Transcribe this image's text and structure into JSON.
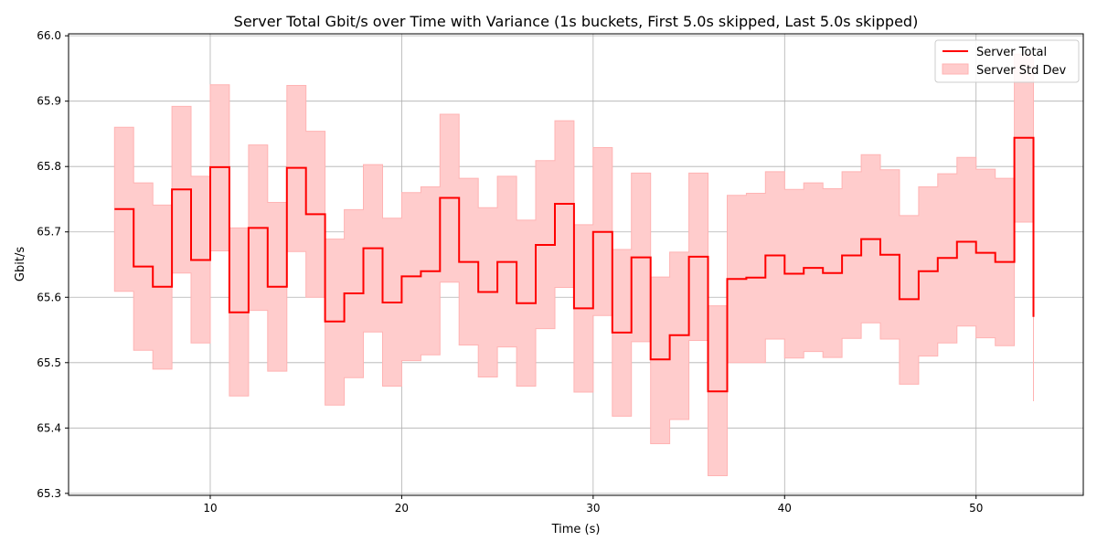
{
  "chart_data": {
    "type": "line",
    "title": "Server Total Gbit/s over Time with Variance (1s buckets, First 5.0s skipped, Last 5.0s skipped)",
    "xlabel": "Time (s)",
    "ylabel": "Gbit/s",
    "xlim": [
      2.6,
      55.6
    ],
    "ylim": [
      65.297,
      66.003
    ],
    "xticks": [
      10,
      20,
      30,
      40,
      50
    ],
    "yticks": [
      65.3,
      65.4,
      65.5,
      65.6,
      65.7,
      65.8,
      65.9,
      66.0
    ],
    "grid": true,
    "legend_position": "top-right",
    "colors": {
      "line": "#ff0000",
      "band_fill": "#ffcccc",
      "band_edge": "#ffb3b3",
      "grid": "#b0b0b0"
    },
    "x": [
      5,
      6,
      7,
      8,
      9,
      10,
      11,
      12,
      13,
      14,
      15,
      16,
      17,
      18,
      19,
      20,
      21,
      22,
      23,
      24,
      25,
      26,
      27,
      28,
      29,
      30,
      31,
      32,
      33,
      34,
      35,
      36,
      37,
      38,
      39,
      40,
      41,
      42,
      43,
      44,
      45,
      46,
      47,
      48,
      49,
      50,
      51,
      52,
      53
    ],
    "series": [
      {
        "name": "Server Total",
        "style": "step-post",
        "values": [
          65.735,
          65.647,
          65.616,
          65.765,
          65.657,
          65.799,
          65.577,
          65.706,
          65.616,
          65.798,
          65.727,
          65.563,
          65.606,
          65.675,
          65.592,
          65.632,
          65.64,
          65.752,
          65.654,
          65.608,
          65.654,
          65.591,
          65.68,
          65.743,
          65.583,
          65.7,
          65.546,
          65.661,
          65.505,
          65.542,
          65.662,
          65.456,
          65.628,
          65.63,
          65.664,
          65.636,
          65.645,
          65.637,
          65.664,
          65.689,
          65.665,
          65.597,
          65.64,
          65.66,
          65.685,
          65.668,
          65.654,
          65.844,
          65.57
        ]
      },
      {
        "name": "Server Std Dev",
        "style": "band",
        "upper": [
          65.86,
          65.775,
          65.741,
          65.892,
          65.785,
          65.925,
          65.706,
          65.833,
          65.745,
          65.924,
          65.854,
          65.689,
          65.734,
          65.803,
          65.721,
          65.76,
          65.769,
          65.88,
          65.782,
          65.737,
          65.785,
          65.718,
          65.809,
          65.87,
          65.711,
          65.829,
          65.673,
          65.79,
          65.631,
          65.669,
          65.79,
          65.587,
          65.756,
          65.759,
          65.792,
          65.765,
          65.775,
          65.766,
          65.792,
          65.818,
          65.795,
          65.725,
          65.769,
          65.789,
          65.814,
          65.796,
          65.782,
          65.972,
          65.7
        ],
        "lower": [
          65.609,
          65.519,
          65.49,
          65.637,
          65.53,
          65.671,
          65.449,
          65.58,
          65.487,
          65.67,
          65.6,
          65.435,
          65.477,
          65.547,
          65.464,
          65.503,
          65.512,
          65.623,
          65.527,
          65.478,
          65.524,
          65.464,
          65.552,
          65.615,
          65.455,
          65.572,
          65.418,
          65.532,
          65.376,
          65.413,
          65.534,
          65.327,
          65.5,
          65.5,
          65.536,
          65.507,
          65.517,
          65.508,
          65.537,
          65.561,
          65.536,
          65.467,
          65.51,
          65.53,
          65.556,
          65.538,
          65.526,
          65.715,
          65.441
        ]
      }
    ]
  }
}
